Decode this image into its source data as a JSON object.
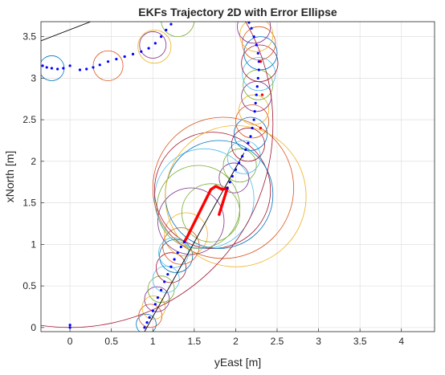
{
  "chart_data": {
    "type": "scatter",
    "title": "EKFs Trajectory 2D with Error Ellipse",
    "xlabel": "yEast [m]",
    "ylabel": "xNorth [m]",
    "xlim": [
      -0.35,
      4.4
    ],
    "ylim": [
      -0.05,
      3.68
    ],
    "grid": true,
    "x_ticks": [
      0,
      0.5,
      1,
      1.5,
      2,
      2.5,
      3,
      3.5,
      4
    ],
    "x_tick_labels": [
      "0",
      "0.5",
      "1",
      "1.5",
      "2",
      "2.5",
      "3",
      "3.5",
      "4"
    ],
    "y_ticks": [
      0,
      0.5,
      1,
      1.5,
      2,
      2.5,
      3,
      3.5
    ],
    "y_tick_labels": [
      "0",
      "0.5",
      "1",
      "1.5",
      "2",
      "2.5",
      "3",
      "3.5"
    ],
    "colors": {
      "blue_points": "#0000ff",
      "red_points": "#ff0000",
      "reference_line": "#000000",
      "ellipse_palette": [
        "#0072bd",
        "#d95319",
        "#edb120",
        "#7e2f8e",
        "#77ac30",
        "#4dbeee",
        "#a2142f"
      ]
    },
    "reference_lines": [
      {
        "x": [
          0.9,
          2.1
        ],
        "y": [
          -0.05,
          2.1
        ]
      },
      {
        "x": [
          -0.35,
          0.25
        ],
        "y": [
          3.45,
          3.68
        ]
      }
    ],
    "blue_track": [
      {
        "x": 0.0,
        "y": 0.0
      },
      {
        "x": 0.0,
        "y": 0.03
      },
      {
        "x": 0.9,
        "y": 0.0
      },
      {
        "x": 0.93,
        "y": 0.06
      },
      {
        "x": 0.96,
        "y": 0.12
      },
      {
        "x": 1.0,
        "y": 0.2
      },
      {
        "x": 1.03,
        "y": 0.28
      },
      {
        "x": 1.06,
        "y": 0.36
      },
      {
        "x": 1.1,
        "y": 0.45
      },
      {
        "x": 1.14,
        "y": 0.55
      },
      {
        "x": 1.18,
        "y": 0.64
      },
      {
        "x": 1.22,
        "y": 0.73
      },
      {
        "x": 1.26,
        "y": 0.82
      },
      {
        "x": 1.3,
        "y": 0.9
      },
      {
        "x": 1.34,
        "y": 0.97
      },
      {
        "x": 1.38,
        "y": 1.03
      },
      {
        "x": 1.9,
        "y": 1.68
      },
      {
        "x": 1.93,
        "y": 1.75
      },
      {
        "x": 1.96,
        "y": 1.82
      },
      {
        "x": 2.0,
        "y": 1.9
      },
      {
        "x": 2.04,
        "y": 1.98
      },
      {
        "x": 2.08,
        "y": 2.06
      },
      {
        "x": 2.12,
        "y": 2.14
      },
      {
        "x": 2.15,
        "y": 2.22
      },
      {
        "x": 2.18,
        "y": 2.3
      },
      {
        "x": 2.2,
        "y": 2.4
      },
      {
        "x": 2.22,
        "y": 2.5
      },
      {
        "x": 2.23,
        "y": 2.6
      },
      {
        "x": 2.24,
        "y": 2.7
      },
      {
        "x": 2.25,
        "y": 2.8
      },
      {
        "x": 2.26,
        "y": 2.9
      },
      {
        "x": 2.27,
        "y": 3.0
      },
      {
        "x": 2.28,
        "y": 3.1
      },
      {
        "x": 2.28,
        "y": 3.2
      },
      {
        "x": 2.27,
        "y": 3.3
      },
      {
        "x": 2.25,
        "y": 3.4
      },
      {
        "x": 2.22,
        "y": 3.5
      },
      {
        "x": 2.19,
        "y": 3.6
      },
      {
        "x": 2.16,
        "y": 3.67
      },
      {
        "x": -0.33,
        "y": 3.15
      },
      {
        "x": -0.28,
        "y": 3.13
      },
      {
        "x": -0.22,
        "y": 3.12
      },
      {
        "x": -0.15,
        "y": 3.11
      },
      {
        "x": -0.08,
        "y": 3.12
      },
      {
        "x": 0.0,
        "y": 3.15
      },
      {
        "x": 0.12,
        "y": 3.1
      },
      {
        "x": 0.2,
        "y": 3.11
      },
      {
        "x": 0.28,
        "y": 3.13
      },
      {
        "x": 0.36,
        "y": 3.16
      },
      {
        "x": 0.46,
        "y": 3.2
      },
      {
        "x": 0.56,
        "y": 3.23
      },
      {
        "x": 0.66,
        "y": 3.26
      },
      {
        "x": 0.76,
        "y": 3.29
      },
      {
        "x": 0.86,
        "y": 3.32
      },
      {
        "x": 0.95,
        "y": 3.36
      },
      {
        "x": 1.03,
        "y": 3.42
      },
      {
        "x": 1.1,
        "y": 3.5
      },
      {
        "x": 1.16,
        "y": 3.58
      },
      {
        "x": 1.22,
        "y": 3.65
      }
    ],
    "red_track": [
      {
        "x": 1.38,
        "y": 1.03
      },
      {
        "x": 1.42,
        "y": 1.1
      },
      {
        "x": 1.46,
        "y": 1.18
      },
      {
        "x": 1.5,
        "y": 1.26
      },
      {
        "x": 1.54,
        "y": 1.34
      },
      {
        "x": 1.58,
        "y": 1.42
      },
      {
        "x": 1.62,
        "y": 1.5
      },
      {
        "x": 1.66,
        "y": 1.58
      },
      {
        "x": 1.7,
        "y": 1.66
      },
      {
        "x": 1.76,
        "y": 1.7
      },
      {
        "x": 1.84,
        "y": 1.66
      },
      {
        "x": 1.9,
        "y": 1.68
      },
      {
        "x": 1.85,
        "y": 1.52
      },
      {
        "x": 1.8,
        "y": 1.36
      },
      {
        "x": 2.3,
        "y": 2.4
      },
      {
        "x": 2.32,
        "y": 2.8
      },
      {
        "x": 2.3,
        "y": 3.2
      }
    ],
    "ellipses": [
      {
        "cx": 0.92,
        "cy": 0.04,
        "r": 0.12
      },
      {
        "cx": 0.97,
        "cy": 0.14,
        "r": 0.14
      },
      {
        "cx": 1.01,
        "cy": 0.24,
        "r": 0.14
      },
      {
        "cx": 1.05,
        "cy": 0.34,
        "r": 0.15
      },
      {
        "cx": 1.1,
        "cy": 0.46,
        "r": 0.16
      },
      {
        "cx": 1.16,
        "cy": 0.58,
        "r": 0.16
      },
      {
        "cx": 1.22,
        "cy": 0.72,
        "r": 0.18
      },
      {
        "cx": 1.28,
        "cy": 0.86,
        "r": 0.2
      },
      {
        "cx": 1.34,
        "cy": 0.98,
        "r": 0.22
      },
      {
        "cx": 1.4,
        "cy": 1.12,
        "r": 0.26
      },
      {
        "cx": 1.46,
        "cy": 1.28,
        "r": 0.4
      },
      {
        "cx": 1.55,
        "cy": 1.45,
        "r": 0.5
      },
      {
        "cx": 1.62,
        "cy": 1.55,
        "r": 0.6
      },
      {
        "cx": 1.72,
        "cy": 1.65,
        "r": 0.7
      },
      {
        "cx": 1.8,
        "cy": 1.6,
        "r": 0.65
      },
      {
        "cx": 1.85,
        "cy": 1.68,
        "r": 0.85
      },
      {
        "cx": 2.0,
        "cy": 1.58,
        "r": 0.85
      },
      {
        "cx": 1.98,
        "cy": 1.8,
        "r": 0.18
      },
      {
        "cx": 2.05,
        "cy": 1.95,
        "r": 0.2
      },
      {
        "cx": 2.1,
        "cy": 2.05,
        "r": 0.2
      },
      {
        "cx": 2.15,
        "cy": 2.2,
        "r": 0.2
      },
      {
        "cx": 2.18,
        "cy": 2.33,
        "r": 0.2
      },
      {
        "cx": 2.2,
        "cy": 2.48,
        "r": 0.2
      },
      {
        "cx": 2.22,
        "cy": 2.62,
        "r": 0.18
      },
      {
        "cx": 2.25,
        "cy": 2.78,
        "r": 0.18
      },
      {
        "cx": 2.27,
        "cy": 2.92,
        "r": 0.18
      },
      {
        "cx": 2.28,
        "cy": 3.05,
        "r": 0.2
      },
      {
        "cx": 2.29,
        "cy": 3.18,
        "r": 0.22
      },
      {
        "cx": 2.3,
        "cy": 3.3,
        "r": 0.2
      },
      {
        "cx": 2.28,
        "cy": 3.42,
        "r": 0.2
      },
      {
        "cx": 2.25,
        "cy": 3.52,
        "r": 0.2
      },
      {
        "cx": 2.22,
        "cy": 3.62,
        "r": 0.2
      },
      {
        "cx": 1.7,
        "cy": 1.38,
        "r": 0.35
      },
      {
        "cx": 1.25,
        "cy": 0.9,
        "r": 0.18
      },
      {
        "cx": 0.0,
        "cy": 2.45,
        "r": 2.45
      },
      {
        "cx": -0.22,
        "cy": 3.12,
        "r": 0.15
      },
      {
        "cx": 0.46,
        "cy": 3.15,
        "r": 0.18
      },
      {
        "cx": 1.02,
        "cy": 3.38,
        "r": 0.2
      },
      {
        "cx": 1.0,
        "cy": 3.4,
        "r": 0.16
      },
      {
        "cx": 1.3,
        "cy": 3.7,
        "r": 0.2
      }
    ]
  }
}
